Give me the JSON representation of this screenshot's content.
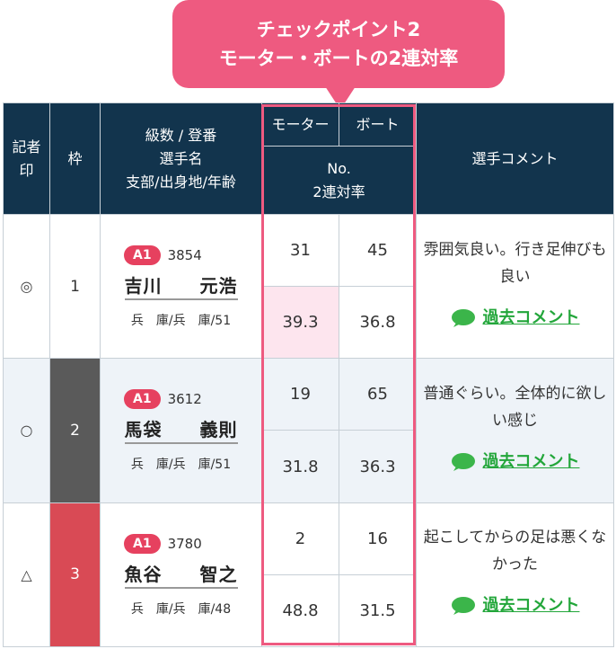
{
  "callout": {
    "line1": "チェックポイント2",
    "line2": "モーター・ボートの2連対率"
  },
  "header": {
    "mark": "記者\n印",
    "waku": "枠",
    "racer_line1": "級数 / 登番",
    "racer_line2": "選手名",
    "racer_line3": "支部/出身地/年齢",
    "motor": "モーター",
    "boat": "ボート",
    "no": "No.",
    "rate": "2連対率",
    "comment": "選手コメント"
  },
  "colors": {
    "accent": "#ee5a80",
    "header_bg": "#12344d",
    "grade": "#e6415f",
    "link": "#22a63a"
  },
  "rows": [
    {
      "mark": "◎",
      "waku": "1",
      "grade": "A1",
      "reg_no": "3854",
      "name": "吉川　　元浩",
      "info": "兵　庫/兵　庫/51",
      "motor_no": "31",
      "boat_no": "45",
      "motor_rate": "39.3",
      "boat_rate": "36.8",
      "comment": "雰囲気良い。行き足伸びも良い",
      "link": "過去コメント"
    },
    {
      "mark": "○",
      "waku": "2",
      "grade": "A1",
      "reg_no": "3612",
      "name": "馬袋　　義則",
      "info": "兵　庫/兵　庫/51",
      "motor_no": "19",
      "boat_no": "65",
      "motor_rate": "31.8",
      "boat_rate": "36.3",
      "comment": "普通ぐらい。全体的に欲しい感じ",
      "link": "過去コメント"
    },
    {
      "mark": "△",
      "waku": "3",
      "grade": "A1",
      "reg_no": "3780",
      "name": "魚谷　　智之",
      "info": "兵　庫/兵　庫/48",
      "motor_no": "2",
      "boat_no": "16",
      "motor_rate": "48.8",
      "boat_rate": "31.5",
      "comment": "起こしてからの足は悪くなかった",
      "link": "過去コメント"
    }
  ]
}
